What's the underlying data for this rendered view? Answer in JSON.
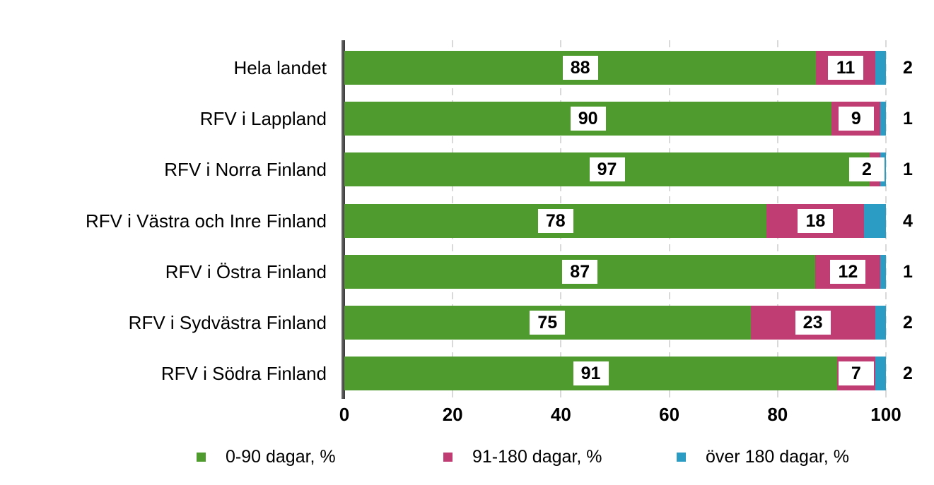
{
  "chart_data": {
    "type": "bar",
    "orientation": "horizontal",
    "stacked": true,
    "unit": "%",
    "categories": [
      "Hela landet",
      "RFV i Lappland",
      "RFV i Norra Finland",
      "RFV i Västra och Inre Finland",
      "RFV i Östra Finland",
      "RFV i Sydvästra Finland",
      "RFV i Södra Finland"
    ],
    "series": [
      {
        "name": "0-90 dagar, %",
        "color": "#4f9b2d",
        "values": [
          88,
          90,
          97,
          78,
          87,
          75,
          91
        ]
      },
      {
        "name": "91-180 dagar, %",
        "color": "#bf3d73",
        "values": [
          11,
          9,
          2,
          18,
          12,
          23,
          7
        ]
      },
      {
        "name": "över 180 dagar, %",
        "color": "#2b9dc4",
        "values": [
          2,
          1,
          1,
          4,
          1,
          2,
          2
        ]
      }
    ],
    "x_ticks": [
      "0",
      "20",
      "40",
      "60",
      "80",
      "100"
    ],
    "xlim": [
      0,
      100
    ],
    "grid": "vertical-dashed",
    "legend_position": "bottom",
    "colors": {
      "axis": "#4a4a4a",
      "gridline": "#d9d9d9",
      "label_text": "#000000",
      "background": "#ffffff"
    }
  }
}
